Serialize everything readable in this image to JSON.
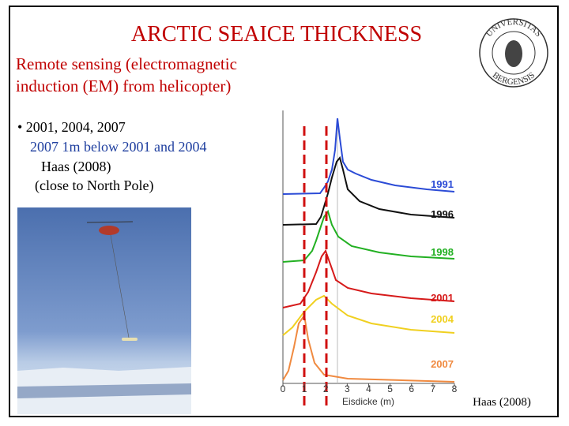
{
  "header": {
    "title": "ARCTIC SEAICE THICKNESS",
    "subtitle": [
      "Remote sensing (electromagnetic",
      "induction (EM) from  helicopter)"
    ]
  },
  "logo": {
    "top": "UNIVERSITAS",
    "bottom": "BERGENSIS"
  },
  "bullets": {
    "main": "• 2001, 2004, 2007",
    "note": "2007 1m below 2001 and 2004",
    "source": "Haas (2008)",
    "place": "(close to North Pole)"
  },
  "figure": {
    "series_labels": [
      "1991",
      "1996",
      "1998",
      "2001",
      "2004",
      "2007"
    ],
    "xticks": [
      "0",
      "1",
      "2",
      "3",
      "4",
      "5",
      "6",
      "7",
      "8"
    ],
    "xlabel": "Eisdicke (m)"
  },
  "credit": "Haas (2008)"
}
